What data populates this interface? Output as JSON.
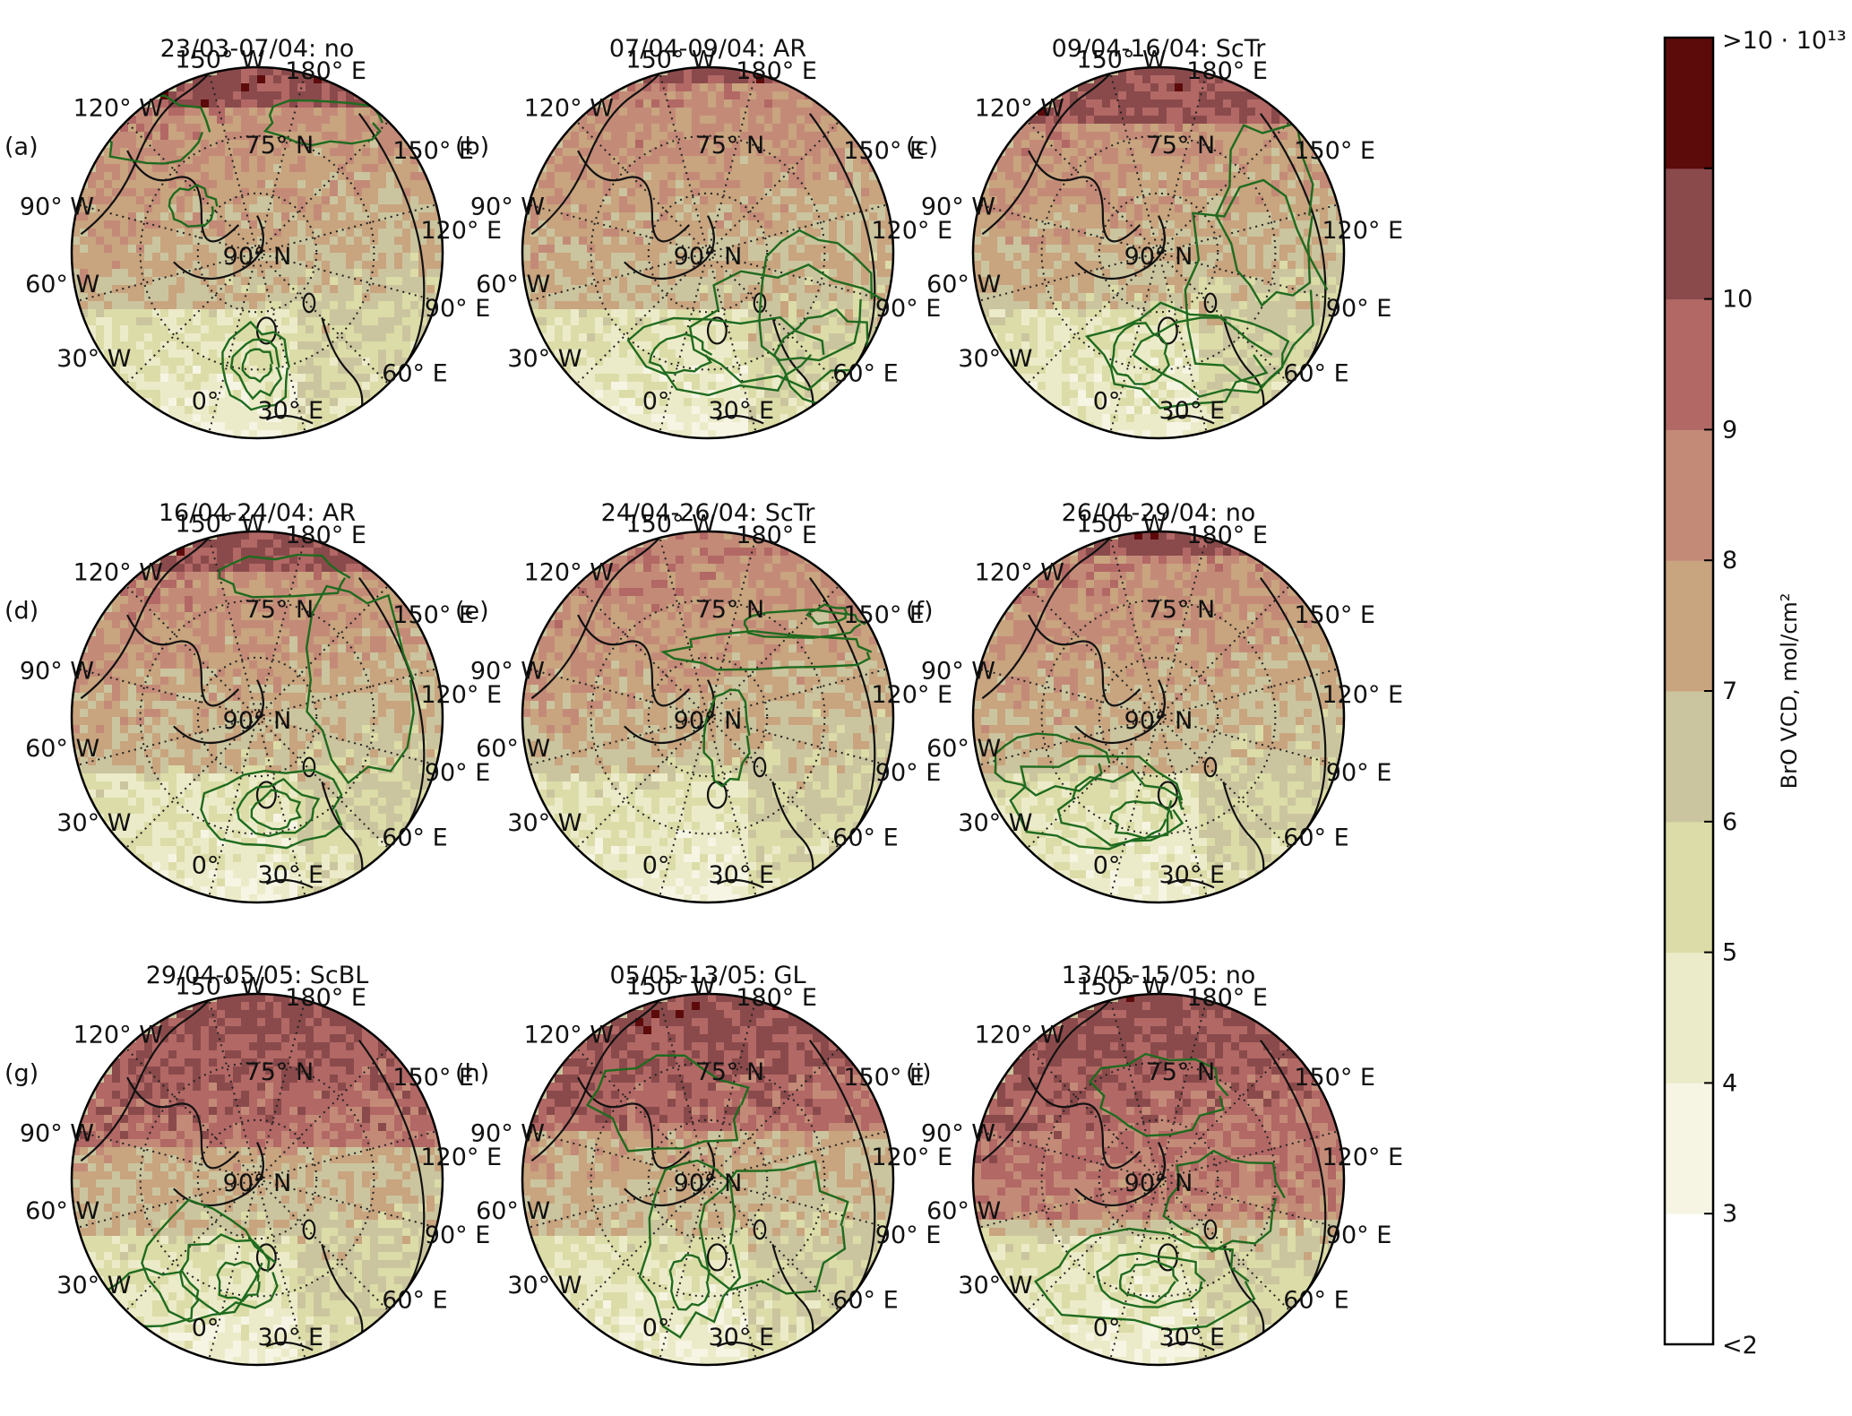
{
  "figure": {
    "panels": [
      {
        "letter": "(a)",
        "title": "23/03-07/04: no",
        "hot": -0.8,
        "land_bias": 0.55,
        "plume": "a"
      },
      {
        "letter": "(b)",
        "title": "07/04-09/04: AR",
        "hot": -0.95,
        "land_bias": 0.35,
        "plume": "b"
      },
      {
        "letter": "(c)",
        "title": "09/04-16/04: ScTr",
        "hot": -0.7,
        "land_bias": 0.45,
        "plume": "c"
      },
      {
        "letter": "(d)",
        "title": "16/04-24/04: AR",
        "hot": -0.8,
        "land_bias": 0.5,
        "plume": "d"
      },
      {
        "letter": "(e)",
        "title": "24/04-26/04: ScTr",
        "hot": -1.0,
        "land_bias": 0.5,
        "plume": "e"
      },
      {
        "letter": "(f)",
        "title": "26/04-29/04: no",
        "hot": -0.9,
        "land_bias": 0.5,
        "plume": "f"
      },
      {
        "letter": "(g)",
        "title": "29/04-05/05: ScBL",
        "hot": -0.2,
        "land_bias": 0.3,
        "plume": "g"
      },
      {
        "letter": "(h)",
        "title": "05/05-13/05: GL",
        "hot": -0.3,
        "land_bias": 0.35,
        "plume": "h"
      },
      {
        "letter": "(i)",
        "title": "13/05-15/05: no",
        "hot": 0.2,
        "land_bias": 0.3,
        "plume": "i"
      }
    ],
    "grid_labels": {
      "lon_150w": "150° W",
      "lon_180e": "180° E",
      "lon_120w": "120° W",
      "lat_75n": "75° N",
      "lon_150e": "150° E",
      "lon_90w": "90° W",
      "lon_120e": "120° E",
      "pole": "90° N",
      "lon_60w": "60° W",
      "lon_90e": "90° E",
      "lon_30w": "30° W",
      "lon_60e": "60° E",
      "lon_0": "0°",
      "lon_30e": "30° E"
    }
  },
  "colorbar": {
    "label": "BrO VCD, mol/cm²",
    "ticks": [
      "<2",
      "3",
      "4",
      "5",
      "6",
      "7",
      "8",
      "9",
      "10",
      ">10 · 10¹³"
    ],
    "bins": [
      "#ffffff",
      "#f6f5e4",
      "#ecebc9",
      "#dcdca8",
      "#cbc59f",
      "#c8a47f",
      "#c48a78",
      "#b26865",
      "#8a4a4b",
      "#5c0a0a"
    ]
  },
  "colors": {
    "contour": "#1f6b1f",
    "coastline": "#111111",
    "grid": "#222222"
  }
}
